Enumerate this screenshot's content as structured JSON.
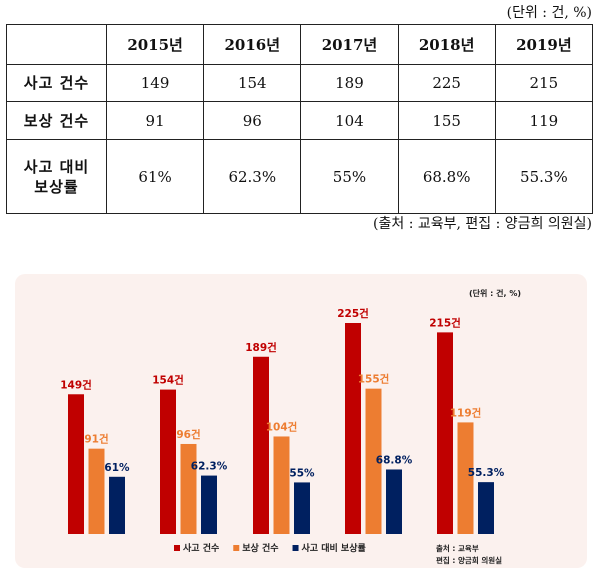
{
  "table": {
    "unit": "(단위 : 건, %)",
    "years": [
      "2015년",
      "2016년",
      "2017년",
      "2018년",
      "2019년"
    ],
    "rows": [
      {
        "label": "사고 건수",
        "values": [
          "149",
          "154",
          "189",
          "225",
          "215"
        ]
      },
      {
        "label": "보상 건수",
        "values": [
          "91",
          "96",
          "104",
          "155",
          "119"
        ]
      },
      {
        "label": "사고 대비\n보상률",
        "values": [
          "61%",
          "62.3%",
          "55%",
          "68.8%",
          "55.3%"
        ]
      }
    ],
    "source": "(출처 : 교육부, 편집 : 양금희 의원실)"
  },
  "chart_data": {
    "type": "bar",
    "unit_label": "(단위 : 건, %)",
    "categories": [
      "",
      "",
      "",
      "",
      ""
    ],
    "series": [
      {
        "name": "사고 건수",
        "color": "#c00000",
        "values": [
          149,
          154,
          189,
          225,
          215
        ],
        "labels": [
          "149건",
          "154건",
          "189건",
          "225건",
          "215건"
        ]
      },
      {
        "name": "보상 건수",
        "color": "#ed7d31",
        "values": [
          91,
          96,
          104,
          155,
          119
        ],
        "labels": [
          "91건",
          "96건",
          "104건",
          "155건",
          "119건"
        ]
      },
      {
        "name": "사고 대비 보상률",
        "color": "#002060",
        "values": [
          61,
          62.3,
          55,
          68.8,
          55.3
        ],
        "labels": [
          "61%",
          "62.3%",
          "55%",
          "68.8%",
          "55.3%"
        ]
      }
    ],
    "source_lines": [
      "출처 : 교육부",
      "편집 : 양금희 의원실"
    ],
    "legend_position": "bottom",
    "grid": false
  }
}
